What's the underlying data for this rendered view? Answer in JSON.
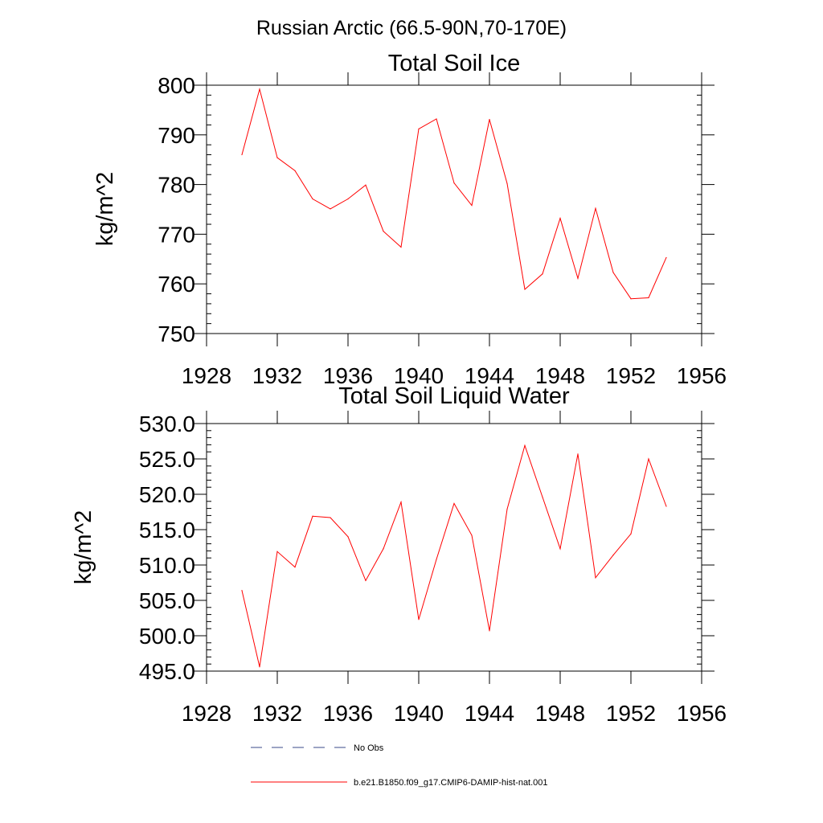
{
  "figure_title": "Russian Arctic (66.5-90N,70-170E)",
  "colors": {
    "series": "#ff0000",
    "obs": "#3a4a8a",
    "axis": "#000000"
  },
  "chart_data": [
    {
      "type": "line",
      "title": "Total Soil Ice",
      "xlabel": "",
      "ylabel": "kg/m^2",
      "xlim": [
        1928,
        1956
      ],
      "ylim": [
        750,
        800
      ],
      "xticks": [
        "1928",
        "1932",
        "1936",
        "1940",
        "1944",
        "1948",
        "1952",
        "1956"
      ],
      "yticks": [
        "750",
        "760",
        "770",
        "780",
        "790",
        "800"
      ],
      "grid": false,
      "x": [
        1930,
        1931,
        1932,
        1933,
        1934,
        1935,
        1936,
        1937,
        1938,
        1939,
        1940,
        1941,
        1942,
        1943,
        1944,
        1945,
        1946,
        1947,
        1948,
        1949,
        1950,
        1951,
        1952,
        1953,
        1954
      ],
      "series": [
        {
          "values": [
            786.0,
            799.2,
            785.4,
            782.8,
            777.1,
            775.1,
            777.1,
            779.9,
            770.6,
            767.4,
            791.2,
            793.2,
            780.3,
            775.8,
            793.1,
            780.2,
            758.9,
            762.0,
            773.2,
            761.1,
            775.2,
            762.3,
            757.0,
            757.2,
            765.3
          ]
        }
      ]
    },
    {
      "type": "line",
      "title": "Total Soil Liquid Water",
      "xlabel": "",
      "ylabel": "kg/m^2",
      "xlim": [
        1928,
        1956
      ],
      "ylim": [
        495.0,
        530.0
      ],
      "xticks": [
        "1928",
        "1932",
        "1936",
        "1940",
        "1944",
        "1948",
        "1952",
        "1956"
      ],
      "yticks": [
        "495.0",
        "500.0",
        "505.0",
        "510.0",
        "515.0",
        "520.0",
        "525.0",
        "530.0"
      ],
      "grid": false,
      "x": [
        1930,
        1931,
        1932,
        1933,
        1934,
        1935,
        1936,
        1937,
        1938,
        1939,
        1940,
        1941,
        1942,
        1943,
        1944,
        1945,
        1946,
        1947,
        1948,
        1949,
        1950,
        1951,
        1952,
        1953,
        1954
      ],
      "series": [
        {
          "values": [
            506.4,
            495.6,
            511.9,
            509.7,
            516.9,
            516.7,
            514.0,
            507.8,
            512.3,
            518.9,
            502.3,
            510.8,
            518.7,
            514.2,
            500.7,
            517.9,
            526.9,
            519.6,
            512.3,
            525.7,
            508.2,
            511.4,
            514.4,
            525.0,
            518.3
          ]
        }
      ]
    }
  ],
  "legend": {
    "placement": "bottom",
    "entries": [
      {
        "label": "No Obs",
        "style": "dashed"
      },
      {
        "label": "b.e21.B1850.f09_g17.CMIP6-DAMIP-hist-nat.001",
        "style": "solid"
      }
    ]
  }
}
